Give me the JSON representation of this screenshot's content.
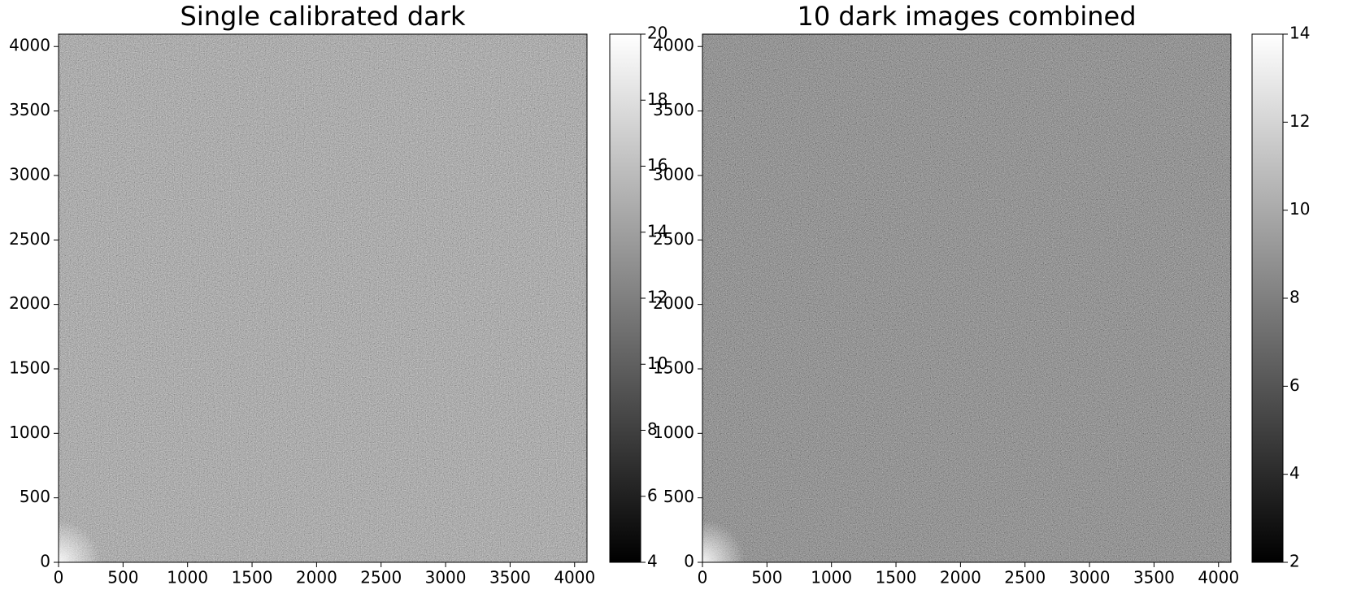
{
  "chart_data": [
    {
      "type": "image",
      "title": "Single calibrated dark",
      "cmap": "gray",
      "xlim": [
        0,
        4096
      ],
      "ylim": [
        0,
        4096
      ],
      "xticks": [
        0,
        500,
        1000,
        1500,
        2000,
        2500,
        3000,
        3500,
        4000
      ],
      "yticks": [
        0,
        500,
        1000,
        1500,
        2000,
        2500,
        3000,
        3500,
        4000
      ],
      "clim": [
        4,
        20
      ],
      "cticks": [
        4,
        6,
        8,
        10,
        12,
        14,
        16,
        18,
        20
      ]
    },
    {
      "type": "image",
      "title": "10 dark images combined",
      "cmap": "gray",
      "xlim": [
        0,
        4096
      ],
      "ylim": [
        0,
        4096
      ],
      "xticks": [
        0,
        500,
        1000,
        1500,
        2000,
        2500,
        3000,
        3500,
        4000
      ],
      "yticks": [
        0,
        500,
        1000,
        1500,
        2000,
        2500,
        3000,
        3500,
        4000
      ],
      "clim": [
        2,
        14
      ],
      "cticks": [
        2,
        4,
        6,
        8,
        10,
        12,
        14
      ]
    }
  ]
}
